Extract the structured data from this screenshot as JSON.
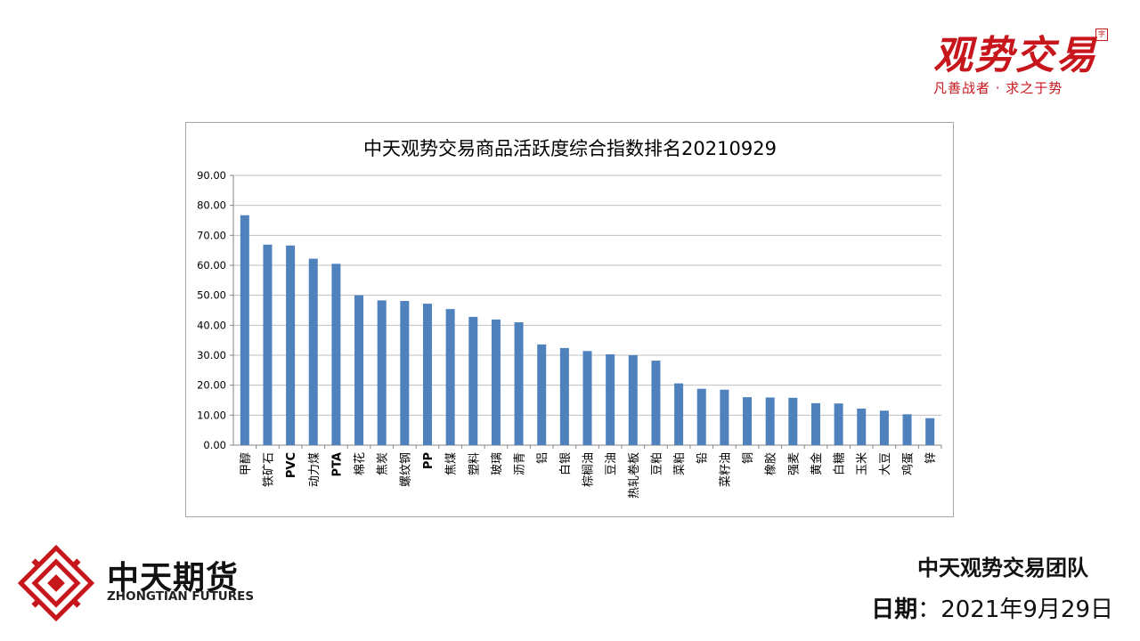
{
  "brand": {
    "title": "观势交易",
    "seal": "字",
    "tagline": "凡善战者 · 求之于势"
  },
  "company": {
    "name_cn": "中天期货",
    "name_en": "ZHONGTIAN FUTURES"
  },
  "footer": {
    "team": "中天观势交易团队",
    "date_label": "日期",
    "date_sep": "：",
    "date_value": "2021年9月29日"
  },
  "colors": {
    "bar": "#4f81bd",
    "brand_red": "#c8161d",
    "grid": "#bfbfbf"
  },
  "chart_data": {
    "type": "bar",
    "title": "中天观势交易商品活跃度综合指数排名20210929",
    "xlabel": "",
    "ylabel": "",
    "ylim": [
      0,
      90
    ],
    "y_ticks": [
      "0.00",
      "10.00",
      "20.00",
      "30.00",
      "40.00",
      "50.00",
      "60.00",
      "70.00",
      "80.00",
      "90.00"
    ],
    "grid": true,
    "legend": "none",
    "categories": [
      "甲醇",
      "铁矿石",
      "PVC",
      "动力煤",
      "PTA",
      "棉花",
      "焦炭",
      "螺纹钢",
      "PP",
      "焦煤",
      "塑料",
      "玻璃",
      "沥青",
      "铝",
      "白银",
      "棕榈油",
      "豆油",
      "热轧卷板",
      "豆粕",
      "菜粕",
      "铅",
      "菜籽油",
      "铜",
      "橡胶",
      "强麦",
      "黄金",
      "白糖",
      "玉米",
      "大豆",
      "鸡蛋",
      "锌"
    ],
    "values": [
      76.7,
      66.9,
      66.6,
      62.2,
      60.5,
      50.0,
      48.3,
      48.1,
      47.2,
      45.4,
      42.8,
      41.9,
      41.0,
      33.6,
      32.4,
      31.4,
      30.3,
      30.0,
      28.2,
      20.6,
      18.8,
      18.5,
      16.0,
      15.9,
      15.8,
      14.0,
      13.9,
      12.2,
      11.5,
      10.3,
      9.0
    ]
  }
}
